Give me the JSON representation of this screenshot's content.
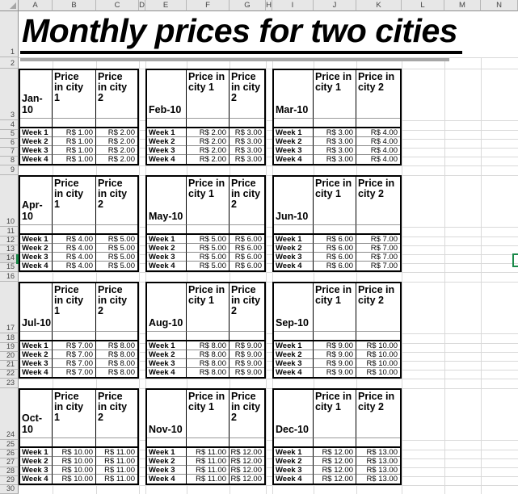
{
  "sheet": {
    "title": "Monthly prices for two cities",
    "column_letters": [
      "A",
      "B",
      "C",
      "D",
      "E",
      "F",
      "G",
      "H",
      "I",
      "J",
      "K",
      "L",
      "M",
      "N"
    ],
    "row_numbers": [
      "1",
      "2",
      "3",
      "4",
      "5",
      "6",
      "7",
      "8",
      "9",
      "10",
      "11",
      "12",
      "13",
      "14",
      "15",
      "16",
      "17",
      "18",
      "19",
      "20",
      "21",
      "22",
      "23",
      "24",
      "25",
      "26",
      "27",
      "28",
      "29",
      "30"
    ],
    "selected_row": "14"
  },
  "tables": [
    {
      "month": "Jan-10",
      "headers": [
        "Price\nin city\n1",
        "Price\nin city\n2"
      ],
      "rows": [
        [
          "Week 1",
          "R$ 1.00",
          "R$ 2.00"
        ],
        [
          "Week 2",
          "R$ 1.00",
          "R$ 2.00"
        ],
        [
          "Week 3",
          "R$ 1.00",
          "R$ 2.00"
        ],
        [
          "Week 4",
          "R$ 1.00",
          "R$ 2.00"
        ]
      ]
    },
    {
      "month": "Feb-10",
      "headers": [
        "Price in\ncity 1",
        "Price\nin city\n2"
      ],
      "rows": [
        [
          "Week 1",
          "R$ 2.00",
          "R$ 3.00"
        ],
        [
          "Week 2",
          "R$ 2.00",
          "R$ 3.00"
        ],
        [
          "Week 3",
          "R$ 2.00",
          "R$ 3.00"
        ],
        [
          "Week 4",
          "R$ 2.00",
          "R$ 3.00"
        ]
      ]
    },
    {
      "month": "Mar-10",
      "headers": [
        "Price in\ncity 1",
        "Price in\ncity 2"
      ],
      "rows": [
        [
          "Week 1",
          "R$ 3.00",
          "R$ 4.00"
        ],
        [
          "Week 2",
          "R$ 3.00",
          "R$ 4.00"
        ],
        [
          "Week 3",
          "R$ 3.00",
          "R$ 4.00"
        ],
        [
          "Week 4",
          "R$ 3.00",
          "R$ 4.00"
        ]
      ]
    },
    {
      "month": "Apr-10",
      "headers": [
        "Price\nin city\n1",
        "Price\nin city\n2"
      ],
      "rows": [
        [
          "Week 1",
          "R$ 4.00",
          "R$ 5.00"
        ],
        [
          "Week 2",
          "R$ 4.00",
          "R$ 5.00"
        ],
        [
          "Week 3",
          "R$ 4.00",
          "R$ 5.00"
        ],
        [
          "Week 4",
          "R$ 4.00",
          "R$ 5.00"
        ]
      ]
    },
    {
      "month": "May-10",
      "headers": [
        "Price in\ncity 1",
        "Price\nin city\n2"
      ],
      "rows": [
        [
          "Week 1",
          "R$ 5.00",
          "R$ 6.00"
        ],
        [
          "Week 2",
          "R$ 5.00",
          "R$ 6.00"
        ],
        [
          "Week 3",
          "R$ 5.00",
          "R$ 6.00"
        ],
        [
          "Week 4",
          "R$ 5.00",
          "R$ 6.00"
        ]
      ]
    },
    {
      "month": "Jun-10",
      "headers": [
        "Price in\ncity 1",
        "Price in\ncity 2"
      ],
      "rows": [
        [
          "Week 1",
          "R$ 6.00",
          "R$ 7.00"
        ],
        [
          "Week 2",
          "R$ 6.00",
          "R$ 7.00"
        ],
        [
          "Week 3",
          "R$ 6.00",
          "R$ 7.00"
        ],
        [
          "Week 4",
          "R$ 6.00",
          "R$ 7.00"
        ]
      ]
    },
    {
      "month": "Jul-10",
      "headers": [
        "Price\nin city\n1",
        "Price\nin city\n2"
      ],
      "rows": [
        [
          "Week 1",
          "R$ 7.00",
          "R$ 8.00"
        ],
        [
          "Week 2",
          "R$ 7.00",
          "R$ 8.00"
        ],
        [
          "Week 3",
          "R$ 7.00",
          "R$ 8.00"
        ],
        [
          "Week 4",
          "R$ 7.00",
          "R$ 8.00"
        ]
      ]
    },
    {
      "month": "Aug-10",
      "headers": [
        "Price in\ncity 1",
        "Price\nin city\n2"
      ],
      "rows": [
        [
          "Week 1",
          "R$ 8.00",
          "R$ 9.00"
        ],
        [
          "Week 2",
          "R$ 8.00",
          "R$ 9.00"
        ],
        [
          "Week 3",
          "R$ 8.00",
          "R$ 9.00"
        ],
        [
          "Week 4",
          "R$ 8.00",
          "R$ 9.00"
        ]
      ]
    },
    {
      "month": "Sep-10",
      "headers": [
        "Price in\ncity 1",
        "Price in\ncity 2"
      ],
      "rows": [
        [
          "Week 1",
          "R$ 9.00",
          "R$ 10.00"
        ],
        [
          "Week 2",
          "R$ 9.00",
          "R$ 10.00"
        ],
        [
          "Week 3",
          "R$ 9.00",
          "R$ 10.00"
        ],
        [
          "Week 4",
          "R$ 9.00",
          "R$ 10.00"
        ]
      ]
    },
    {
      "month": "Oct-10",
      "headers": [
        "Price\nin city\n1",
        "Price\nin city\n2"
      ],
      "rows": [
        [
          "Week 1",
          "R$ 10.00",
          "R$ 11.00"
        ],
        [
          "Week 2",
          "R$ 10.00",
          "R$ 11.00"
        ],
        [
          "Week 3",
          "R$ 10.00",
          "R$ 11.00"
        ],
        [
          "Week 4",
          "R$ 10.00",
          "R$ 11.00"
        ]
      ]
    },
    {
      "month": "Nov-10",
      "headers": [
        "Price in\ncity 1",
        "Price\nin city\n2"
      ],
      "rows": [
        [
          "Week 1",
          "R$ 11.00",
          "R$ 12.00"
        ],
        [
          "Week 2",
          "R$ 11.00",
          "R$ 12.00"
        ],
        [
          "Week 3",
          "R$ 11.00",
          "R$ 12.00"
        ],
        [
          "Week 4",
          "R$ 11.00",
          "R$ 12.00"
        ]
      ]
    },
    {
      "month": "Dec-10",
      "headers": [
        "Price in\ncity 1",
        "Price in\ncity 2"
      ],
      "rows": [
        [
          "Week 1",
          "R$ 12.00",
          "R$ 13.00"
        ],
        [
          "Week 2",
          "R$ 12.00",
          "R$ 13.00"
        ],
        [
          "Week 3",
          "R$ 12.00",
          "R$ 13.00"
        ],
        [
          "Week 4",
          "R$ 12.00",
          "R$ 13.00"
        ]
      ]
    }
  ]
}
